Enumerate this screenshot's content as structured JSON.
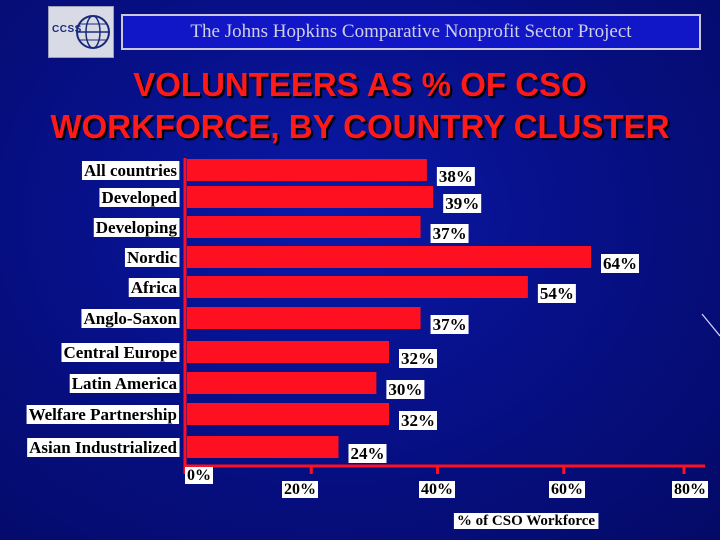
{
  "logo": {
    "text": "CCSS"
  },
  "banner": {
    "text": "The Johns Hopkins Comparative Nonprofit Sector Project"
  },
  "title": {
    "line1": "VOLUNTEERS AS % OF CSO",
    "line2": "WORKFORCE, BY COUNTRY CLUSTER"
  },
  "colors": {
    "bar": "#ff1020",
    "axis": "#ff1020",
    "title": "#ff1a1a",
    "background": "#071088"
  },
  "chart_data": {
    "type": "bar",
    "orientation": "horizontal",
    "categories": [
      "All countries",
      "Developed",
      "Developing",
      "Nordic",
      "Africa",
      "Anglo-Saxon",
      "Central Europe",
      "Latin America",
      "Welfare Partnership",
      "Asian Industrialized"
    ],
    "values": [
      38,
      39,
      37,
      64,
      54,
      37,
      32,
      30,
      32,
      24
    ],
    "value_labels": [
      "38%",
      "39%",
      "37%",
      "64%",
      "54%",
      "37%",
      "32%",
      "30%",
      "32%",
      "24%"
    ],
    "xticks": [
      "0%",
      "20%",
      "40%",
      "60%",
      "80%"
    ],
    "xlim": [
      0,
      80
    ],
    "xlabel": "% of CSO Workforce",
    "title": "VOLUNTEERS AS % OF CSO WORKFORCE, BY COUNTRY CLUSTER",
    "grid": false
  }
}
